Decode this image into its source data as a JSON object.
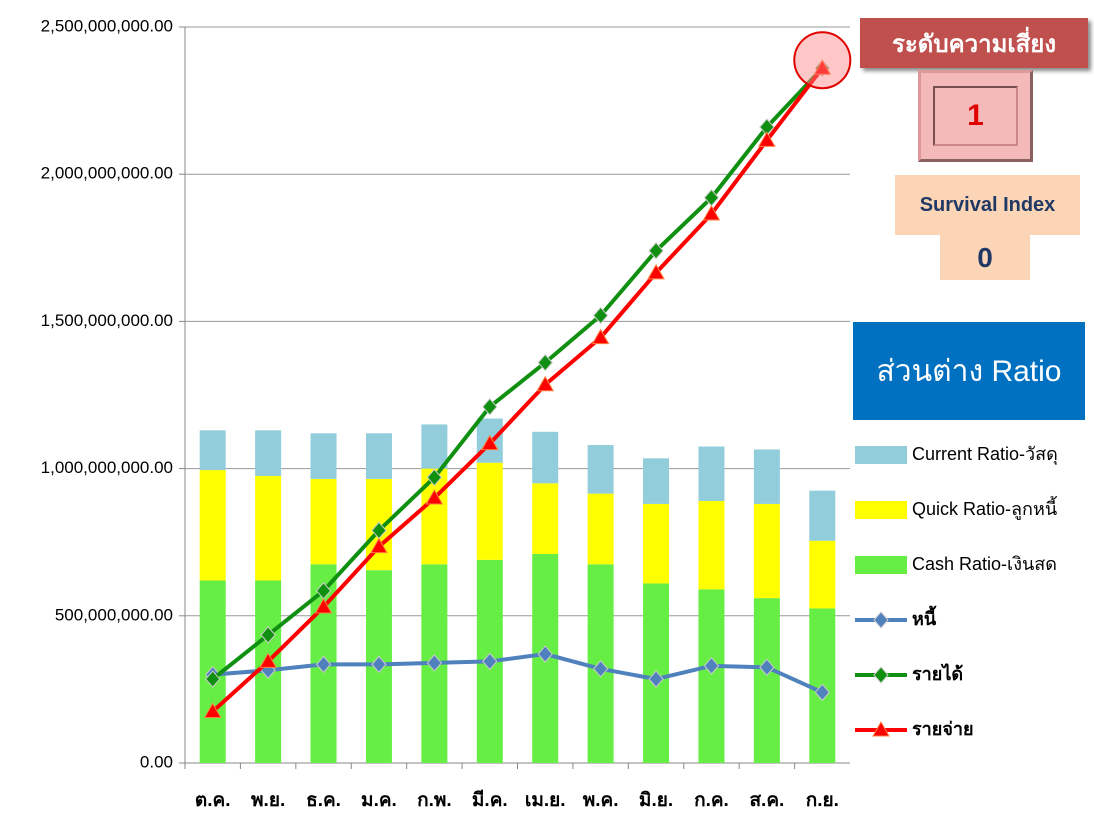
{
  "chart_data": {
    "type": "bar",
    "categories": [
      "ต.ค.",
      "พ.ย.",
      "ธ.ค.",
      "ม.ค.",
      "ก.พ.",
      "มี.ค.",
      "เม.ย.",
      "พ.ค.",
      "มิ.ย.",
      "ก.ค.",
      "ส.ค.",
      "ก.ย."
    ],
    "series": [
      {
        "name": "Cash Ratio-เงินสด",
        "type": "bar",
        "color": "#66ee44",
        "values": [
          620000000,
          620000000,
          675000000,
          655000000,
          675000000,
          690000000,
          710000000,
          675000000,
          610000000,
          590000000,
          560000000,
          525000000
        ]
      },
      {
        "name": "Quick Ratio-ลูกหนี้",
        "type": "bar",
        "color": "#ffff00",
        "values": [
          375000000,
          355000000,
          290000000,
          310000000,
          325000000,
          330000000,
          240000000,
          240000000,
          270000000,
          300000000,
          320000000,
          230000000
        ]
      },
      {
        "name": "Current Ratio-วัสดุ",
        "type": "bar",
        "color": "#92cddc",
        "values": [
          135000000,
          155000000,
          155000000,
          155000000,
          150000000,
          150000000,
          175000000,
          165000000,
          155000000,
          185000000,
          185000000,
          170000000
        ]
      },
      {
        "name": "หนี้",
        "type": "line",
        "marker": "diamond",
        "color": "#4f81bd",
        "values": [
          300000000,
          315000000,
          335000000,
          335000000,
          340000000,
          345000000,
          370000000,
          320000000,
          285000000,
          330000000,
          325000000,
          240000000
        ]
      },
      {
        "name": "รายได้",
        "type": "line",
        "marker": "diamond",
        "color": "#109010",
        "values": [
          285000000,
          435000000,
          585000000,
          790000000,
          970000000,
          1210000000,
          1360000000,
          1520000000,
          1740000000,
          1920000000,
          2160000000,
          2360000000
        ]
      },
      {
        "name": "รายจ่าย",
        "type": "line",
        "marker": "triangle",
        "color": "#ff0000",
        "values": [
          175000000,
          345000000,
          530000000,
          735000000,
          900000000,
          1085000000,
          1285000000,
          1445000000,
          1665000000,
          1865000000,
          2115000000,
          2360000000
        ]
      }
    ],
    "legend_order": [
      2,
      1,
      0,
      3,
      4,
      5
    ],
    "ylim": [
      0,
      2500000000
    ],
    "yticks": [
      {
        "value": 0,
        "label": "0.00"
      },
      {
        "value": 500000000,
        "label": "500,000,000.00"
      },
      {
        "value": 1000000000,
        "label": "1,000,000,000.00"
      },
      {
        "value": 1500000000,
        "label": "1,500,000,000.00"
      },
      {
        "value": 2000000000,
        "label": "2,000,000,000.00"
      },
      {
        "value": 2500000000,
        "label": "2,500,000,000.00"
      }
    ],
    "grid": true
  },
  "side_panel": {
    "risk_title": "ระดับความเสี่ยง",
    "risk_level": 1,
    "survival_title": "Survival Index",
    "survival_value": 0,
    "ratio_title": "ส่วนต่าง Ratio"
  }
}
